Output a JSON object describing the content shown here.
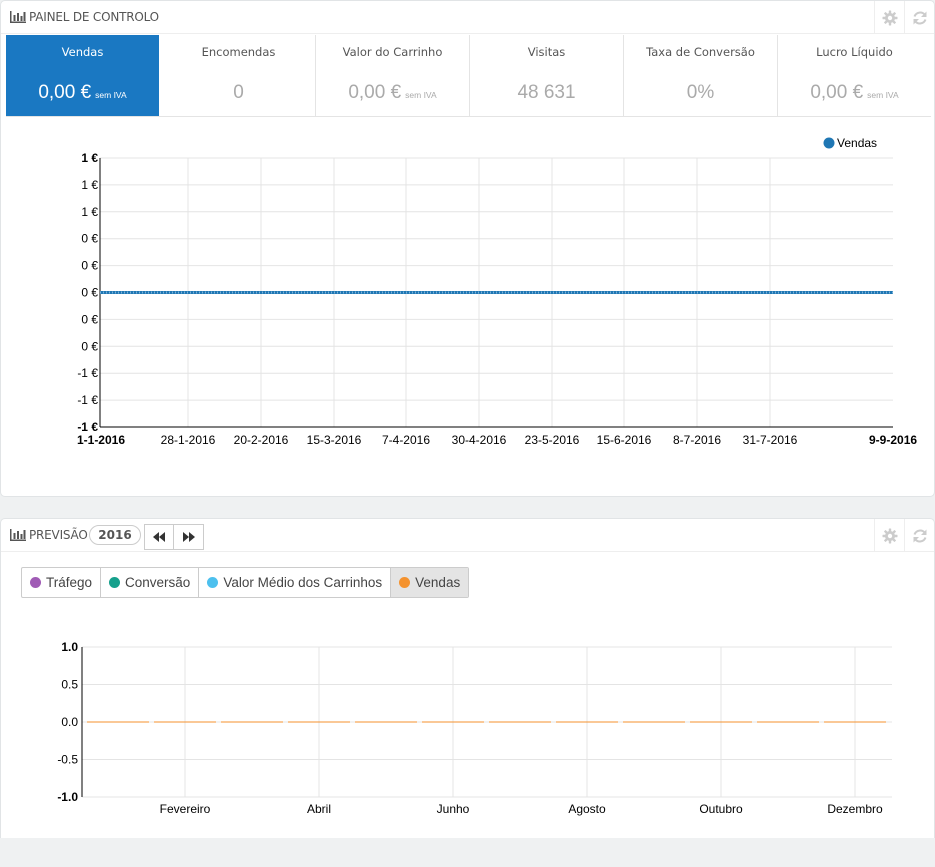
{
  "dashboard": {
    "title": "PAINEL DE CONTROLO",
    "kpis": [
      {
        "title": "Vendas",
        "value": "0,00 €",
        "unit": "sem IVA",
        "active": true
      },
      {
        "title": "Encomendas",
        "value": "0",
        "unit": ""
      },
      {
        "title": "Valor do Carrinho",
        "value": "0,00 €",
        "unit": "sem IVA"
      },
      {
        "title": "Visitas",
        "value": "48 631",
        "unit": ""
      },
      {
        "title": "Taxa de Conversão",
        "value": "0%",
        "unit": ""
      },
      {
        "title": "Lucro Líquido",
        "value": "0,00 €",
        "unit": "sem IVA"
      }
    ]
  },
  "forecast": {
    "title": "PREVISÃO",
    "year": "2016",
    "toggles": [
      {
        "label": "Tráfego",
        "color": "#a05bb5"
      },
      {
        "label": "Conversão",
        "color": "#15a08c"
      },
      {
        "label": "Valor Médio dos Carrinhos",
        "color": "#4dc0ee"
      },
      {
        "label": "Vendas",
        "color": "#f4922e",
        "active": true
      }
    ]
  },
  "colors": {
    "accent": "#1a78c2",
    "series_sales": "#1f77b4",
    "series_forecast": "#f4922e"
  },
  "icons": [
    "bar-chart-icon",
    "gear-icon",
    "refresh-icon",
    "backward-icon",
    "forward-icon"
  ],
  "chart_data": [
    {
      "type": "line",
      "series": [
        {
          "name": "Vendas",
          "y_constant": 0
        }
      ],
      "x_ticks": [
        "1-1-2016",
        "28-1-2016",
        "20-2-2016",
        "15-3-2016",
        "7-4-2016",
        "30-4-2016",
        "23-5-2016",
        "15-6-2016",
        "8-7-2016",
        "31-7-2016",
        "9-9-2016"
      ],
      "x_range": [
        "2016-01-01",
        "2016-09-09"
      ],
      "y_ticks": [
        "1 €",
        "1 €",
        "1 €",
        "0 €",
        "0 €",
        "0 €",
        "0 €",
        "0 €",
        "-1 €",
        "-1 €",
        "-1 €"
      ],
      "y_range": [
        -1,
        1
      ],
      "legend": "top-right",
      "grid": true
    },
    {
      "type": "line",
      "series": [
        {
          "y_constant": 0
        }
      ],
      "x_ticks": [
        "Fevereiro",
        "Abril",
        "Junho",
        "Agosto",
        "Outubro",
        "Dezembro"
      ],
      "y_ticks": [
        "1.0",
        "0.5",
        "0.0",
        "-0.5",
        "-1.0"
      ],
      "y_range": [
        -1,
        1
      ],
      "grid": true
    }
  ]
}
